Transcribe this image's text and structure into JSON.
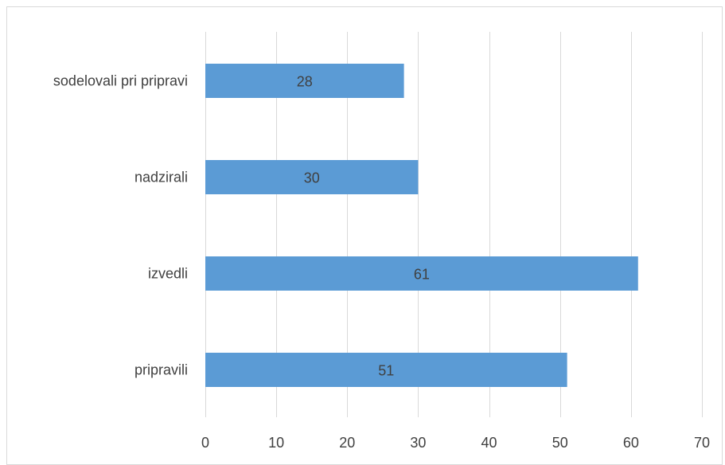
{
  "chart_data": {
    "type": "bar",
    "orientation": "horizontal",
    "categories": [
      "sodelovali pri pripravi",
      "nadzirali",
      "izvedli",
      "pripravili"
    ],
    "values": [
      28,
      30,
      61,
      51
    ],
    "xlim": [
      0,
      70
    ],
    "x_ticks": [
      0,
      10,
      20,
      30,
      40,
      50,
      60,
      70
    ],
    "grid": "vertical",
    "data_labels": true,
    "bar_color": "#5b9bd5",
    "gridline_color": "#d9d9d9",
    "text_color": "#404040"
  }
}
